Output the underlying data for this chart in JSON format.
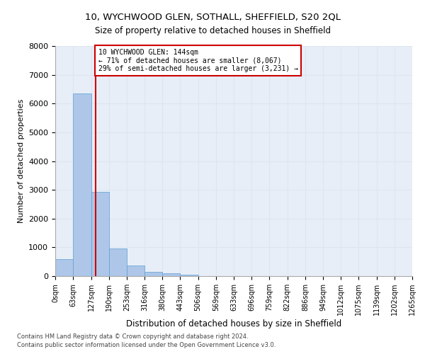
{
  "title1": "10, WYCHWOOD GLEN, SOTHALL, SHEFFIELD, S20 2QL",
  "title2": "Size of property relative to detached houses in Sheffield",
  "xlabel": "Distribution of detached houses by size in Sheffield",
  "ylabel": "Number of detached properties",
  "annotation_line1": "10 WYCHWOOD GLEN: 144sqm",
  "annotation_line2": "← 71% of detached houses are smaller (8,067)",
  "annotation_line3": "29% of semi-detached houses are larger (3,231) →",
  "footnote1": "Contains HM Land Registry data © Crown copyright and database right 2024.",
  "footnote2": "Contains public sector information licensed under the Open Government Licence v3.0.",
  "bin_edges": [
    0,
    63,
    127,
    190,
    253,
    316,
    380,
    443,
    506,
    569,
    633,
    696,
    759,
    822,
    886,
    949,
    1012,
    1075,
    1139,
    1202,
    1265
  ],
  "bin_labels": [
    "0sqm",
    "63sqm",
    "127sqm",
    "190sqm",
    "253sqm",
    "316sqm",
    "380sqm",
    "443sqm",
    "506sqm",
    "569sqm",
    "633sqm",
    "696sqm",
    "759sqm",
    "822sqm",
    "886sqm",
    "949sqm",
    "1012sqm",
    "1075sqm",
    "1139sqm",
    "1202sqm",
    "1265sqm"
  ],
  "bar_heights": [
    580,
    6350,
    2920,
    960,
    360,
    160,
    90,
    60,
    0,
    0,
    0,
    0,
    0,
    0,
    0,
    0,
    0,
    0,
    0,
    0
  ],
  "bar_color": "#aec6e8",
  "bar_edge_color": "#5a9fd4",
  "grid_color": "#dce6f1",
  "bg_color": "#e8eef7",
  "property_size": 144,
  "vline_color": "#cc0000",
  "annotation_box_color": "#cc0000",
  "ylim": [
    0,
    8000
  ],
  "yticks": [
    0,
    1000,
    2000,
    3000,
    4000,
    5000,
    6000,
    7000,
    8000
  ]
}
